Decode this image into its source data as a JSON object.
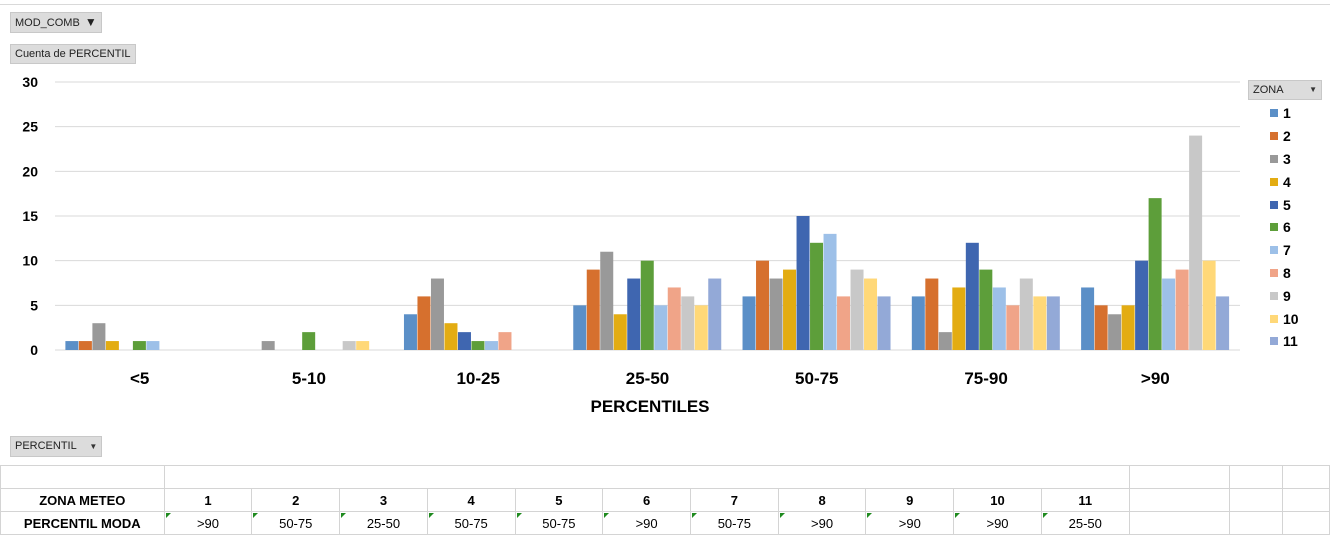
{
  "filters": {
    "report_filter": "MOD_COMB",
    "value_field": "Cuenta de PERCENTIL",
    "axis_field": "PERCENTIL",
    "legend_field": "ZONA"
  },
  "colors": {
    "series": [
      "#5b8fc7",
      "#d6702e",
      "#999999",
      "#e3ac12",
      "#3f66b0",
      "#5d9e3a",
      "#9dc0e8",
      "#f0a488",
      "#c8c8c8",
      "#ffd878",
      "#93a9d7"
    ]
  },
  "chart_data": {
    "type": "bar",
    "xlabel": "PERCENTILES",
    "ylabel": "",
    "ylim": [
      0,
      30
    ],
    "yticks": [
      0,
      5,
      10,
      15,
      20,
      25,
      30
    ],
    "grid": true,
    "legend_position": "right",
    "categories": [
      "<5",
      "5-10",
      "10-25",
      "25-50",
      "50-75",
      "75-90",
      ">90"
    ],
    "series": [
      {
        "name": "1",
        "values": [
          1,
          0,
          4,
          5,
          6,
          6,
          7
        ]
      },
      {
        "name": "2",
        "values": [
          1,
          0,
          6,
          9,
          10,
          8,
          5
        ]
      },
      {
        "name": "3",
        "values": [
          3,
          1,
          8,
          11,
          8,
          2,
          4
        ]
      },
      {
        "name": "4",
        "values": [
          1,
          0,
          3,
          4,
          9,
          7,
          5
        ]
      },
      {
        "name": "5",
        "values": [
          0,
          0,
          2,
          8,
          15,
          12,
          10
        ]
      },
      {
        "name": "6",
        "values": [
          1,
          2,
          1,
          10,
          12,
          9,
          17
        ]
      },
      {
        "name": "7",
        "values": [
          1,
          0,
          1,
          5,
          13,
          7,
          8
        ]
      },
      {
        "name": "8",
        "values": [
          0,
          0,
          2,
          7,
          6,
          5,
          9
        ]
      },
      {
        "name": "9",
        "values": [
          0,
          1,
          0,
          6,
          9,
          8,
          24
        ]
      },
      {
        "name": "10",
        "values": [
          0,
          1,
          0,
          5,
          8,
          6,
          10
        ]
      },
      {
        "name": "11",
        "values": [
          0,
          0,
          0,
          8,
          6,
          6,
          6
        ]
      }
    ]
  },
  "table": {
    "row1_header": "ZONA METEO",
    "row2_header": "PERCENTIL MODA",
    "zonas": [
      "1",
      "2",
      "3",
      "4",
      "5",
      "6",
      "7",
      "8",
      "9",
      "10",
      "11"
    ],
    "modas": [
      ">90",
      "50-75",
      "25-50",
      "50-75",
      "50-75",
      ">90",
      "50-75",
      ">90",
      ">90",
      ">90",
      "25-50"
    ]
  }
}
